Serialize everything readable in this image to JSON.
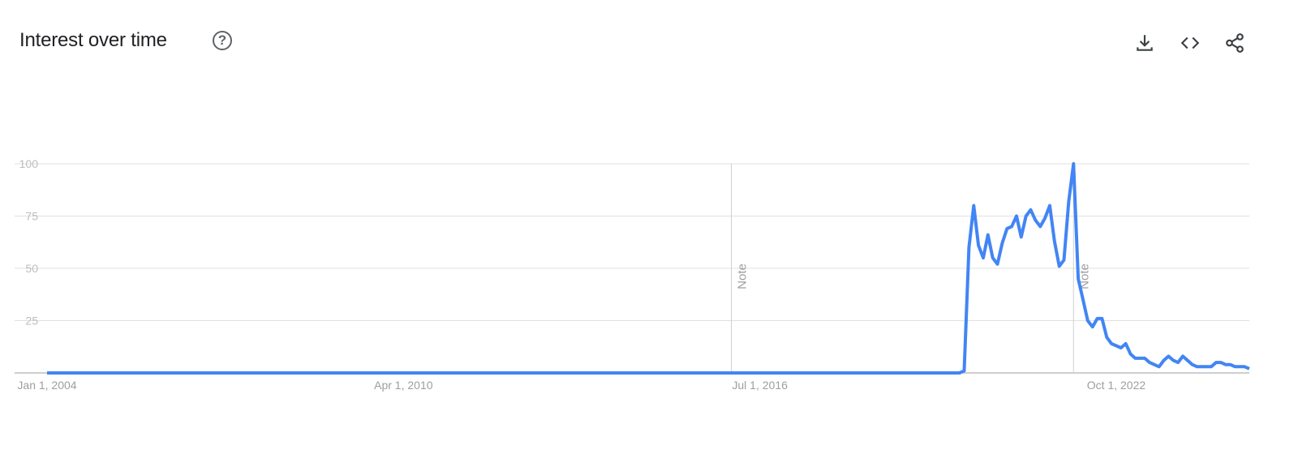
{
  "header": {
    "title": "Interest over time",
    "help_icon": "help-circle-icon",
    "actions": [
      {
        "name": "download-button",
        "icon": "download-icon"
      },
      {
        "name": "embed-button",
        "icon": "code-icon"
      },
      {
        "name": "share-button",
        "icon": "share-icon"
      }
    ]
  },
  "chart_data": {
    "type": "line",
    "title": "",
    "xlabel": "",
    "ylabel": "",
    "ylim": [
      0,
      100
    ],
    "yticks": [
      "25",
      "50",
      "75",
      "100"
    ],
    "xticks": [
      {
        "label": "Jan 1, 2004",
        "x": "2004-01"
      },
      {
        "label": "Apr 1, 2010",
        "x": "2010-04"
      },
      {
        "label": "Jul 1, 2016",
        "x": "2016-07"
      },
      {
        "label": "Oct 1, 2022",
        "x": "2022-10"
      }
    ],
    "grid": true,
    "line_color": "#4285f4",
    "annotations": [
      {
        "label": "Note",
        "x": "2016-01"
      },
      {
        "label": "Note",
        "x": "2022-01"
      }
    ],
    "x": [
      "2004-01",
      "2004-02",
      "2004-03",
      "2004-04",
      "2004-05",
      "2004-06",
      "2004-07",
      "2004-08",
      "2004-09",
      "2004-10",
      "2004-11",
      "2004-12",
      "2005-01",
      "2005-02",
      "2005-03",
      "2005-04",
      "2005-05",
      "2005-06",
      "2005-07",
      "2005-08",
      "2005-09",
      "2005-10",
      "2005-11",
      "2005-12",
      "2006-01",
      "2006-02",
      "2006-03",
      "2006-04",
      "2006-05",
      "2006-06",
      "2006-07",
      "2006-08",
      "2006-09",
      "2006-10",
      "2006-11",
      "2006-12",
      "2007-01",
      "2007-02",
      "2007-03",
      "2007-04",
      "2007-05",
      "2007-06",
      "2007-07",
      "2007-08",
      "2007-09",
      "2007-10",
      "2007-11",
      "2007-12",
      "2008-01",
      "2008-02",
      "2008-03",
      "2008-04",
      "2008-05",
      "2008-06",
      "2008-07",
      "2008-08",
      "2008-09",
      "2008-10",
      "2008-11",
      "2008-12",
      "2009-01",
      "2009-02",
      "2009-03",
      "2009-04",
      "2009-05",
      "2009-06",
      "2009-07",
      "2009-08",
      "2009-09",
      "2009-10",
      "2009-11",
      "2009-12",
      "2010-01",
      "2010-02",
      "2010-03",
      "2010-04",
      "2010-05",
      "2010-06",
      "2010-07",
      "2010-08",
      "2010-09",
      "2010-10",
      "2010-11",
      "2010-12",
      "2011-01",
      "2011-02",
      "2011-03",
      "2011-04",
      "2011-05",
      "2011-06",
      "2011-07",
      "2011-08",
      "2011-09",
      "2011-10",
      "2011-11",
      "2011-12",
      "2012-01",
      "2012-02",
      "2012-03",
      "2012-04",
      "2012-05",
      "2012-06",
      "2012-07",
      "2012-08",
      "2012-09",
      "2012-10",
      "2012-11",
      "2012-12",
      "2013-01",
      "2013-02",
      "2013-03",
      "2013-04",
      "2013-05",
      "2013-06",
      "2013-07",
      "2013-08",
      "2013-09",
      "2013-10",
      "2013-11",
      "2013-12",
      "2014-01",
      "2014-02",
      "2014-03",
      "2014-04",
      "2014-05",
      "2014-06",
      "2014-07",
      "2014-08",
      "2014-09",
      "2014-10",
      "2014-11",
      "2014-12",
      "2015-01",
      "2015-02",
      "2015-03",
      "2015-04",
      "2015-05",
      "2015-06",
      "2015-07",
      "2015-08",
      "2015-09",
      "2015-10",
      "2015-11",
      "2015-12",
      "2016-01",
      "2016-02",
      "2016-03",
      "2016-04",
      "2016-05",
      "2016-06",
      "2016-07",
      "2016-08",
      "2016-09",
      "2016-10",
      "2016-11",
      "2016-12",
      "2017-01",
      "2017-02",
      "2017-03",
      "2017-04",
      "2017-05",
      "2017-06",
      "2017-07",
      "2017-08",
      "2017-09",
      "2017-10",
      "2017-11",
      "2017-12",
      "2018-01",
      "2018-02",
      "2018-03",
      "2018-04",
      "2018-05",
      "2018-06",
      "2018-07",
      "2018-08",
      "2018-09",
      "2018-10",
      "2018-11",
      "2018-12",
      "2019-01",
      "2019-02",
      "2019-03",
      "2019-04",
      "2019-05",
      "2019-06",
      "2019-07",
      "2019-08",
      "2019-09",
      "2019-10",
      "2019-11",
      "2019-12",
      "2020-01",
      "2020-02",
      "2020-03",
      "2020-04",
      "2020-05",
      "2020-06",
      "2020-07",
      "2020-08",
      "2020-09",
      "2020-10",
      "2020-11",
      "2020-12",
      "2021-01",
      "2021-02",
      "2021-03",
      "2021-04",
      "2021-05",
      "2021-06",
      "2021-07",
      "2021-08",
      "2021-09",
      "2021-10",
      "2021-11",
      "2021-12",
      "2022-01",
      "2022-02",
      "2022-03",
      "2022-04",
      "2022-05",
      "2022-06",
      "2022-07",
      "2022-08",
      "2022-09",
      "2022-10",
      "2022-11",
      "2022-12",
      "2023-01",
      "2023-02",
      "2023-03",
      "2023-04",
      "2023-05",
      "2023-06",
      "2023-07",
      "2023-08",
      "2023-09",
      "2023-10",
      "2023-11",
      "2023-12",
      "2024-01",
      "2024-02",
      "2024-03",
      "2024-04",
      "2024-05",
      "2024-06",
      "2024-07",
      "2024-08",
      "2024-09",
      "2024-10",
      "2024-11",
      "2024-12",
      "2025-01",
      "2025-02"
    ],
    "y": [
      0,
      0,
      0,
      0,
      0,
      0,
      0,
      0,
      0,
      0,
      0,
      0,
      0,
      0,
      0,
      0,
      0,
      0,
      0,
      0,
      0,
      0,
      0,
      0,
      0,
      0,
      0,
      0,
      0,
      0,
      0,
      0,
      0,
      0,
      0,
      0,
      0,
      0,
      0,
      0,
      0,
      0,
      0,
      0,
      0,
      0,
      0,
      0,
      0,
      0,
      0,
      0,
      0,
      0,
      0,
      0,
      0,
      0,
      0,
      0,
      0,
      0,
      0,
      0,
      0,
      0,
      0,
      0,
      0,
      0,
      0,
      0,
      0,
      0,
      0,
      0,
      0,
      0,
      0,
      0,
      0,
      0,
      0,
      0,
      0,
      0,
      0,
      0,
      0,
      0,
      0,
      0,
      0,
      0,
      0,
      0,
      0,
      0,
      0,
      0,
      0,
      0,
      0,
      0,
      0,
      0,
      0,
      0,
      0,
      0,
      0,
      0,
      0,
      0,
      0,
      0,
      0,
      0,
      0,
      0,
      0,
      0,
      0,
      0,
      0,
      0,
      0,
      0,
      0,
      0,
      0,
      0,
      0,
      0,
      0,
      0,
      0,
      0,
      0,
      0,
      0,
      0,
      0,
      0,
      0,
      0,
      0,
      0,
      0,
      0,
      0,
      0,
      0,
      0,
      0,
      0,
      0,
      0,
      0,
      0,
      0,
      0,
      0,
      0,
      0,
      0,
      0,
      0,
      0,
      0,
      0,
      0,
      0,
      0,
      0,
      0,
      0,
      0,
      0,
      0,
      0,
      0,
      0,
      0,
      0,
      0,
      0,
      0,
      0,
      0,
      0,
      0,
      0,
      1,
      60,
      80,
      61,
      55,
      66,
      55,
      52,
      62,
      69,
      70,
      75,
      65,
      75,
      78,
      73,
      70,
      74,
      80,
      63,
      51,
      54,
      82,
      100,
      45,
      35,
      25,
      22,
      26,
      26,
      17,
      14,
      13,
      12,
      14,
      9,
      7,
      7,
      7,
      5,
      4,
      3,
      6,
      8,
      6,
      5,
      8,
      6,
      4,
      3,
      3,
      3,
      3,
      5,
      5,
      4,
      4,
      3,
      3,
      3,
      2
    ]
  }
}
